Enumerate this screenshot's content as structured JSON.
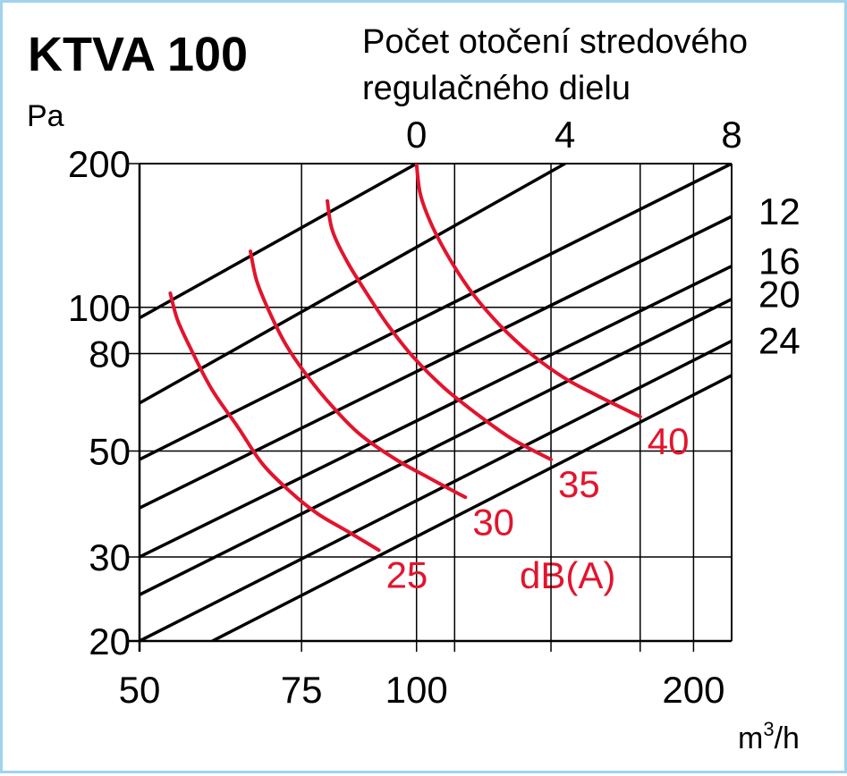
{
  "chart_data": {
    "type": "line",
    "title": "KTVA 100",
    "top_axis_title_line1": "Počet otočení stredového",
    "top_axis_title_line2": "regulačného dielu",
    "ylabel": "Pa",
    "xlabel": "m3/h",
    "xlabel_base": "m",
    "xlabel_sup": "3",
    "xlabel_rest": "/h",
    "x_scale": "log",
    "y_scale": "log",
    "xlim": [
      50,
      220
    ],
    "ylim": [
      20,
      200
    ],
    "x_ticks": [
      50,
      75,
      100,
      200
    ],
    "x_tick_labels": [
      "50",
      "75",
      "100",
      "200"
    ],
    "y_ticks": [
      20,
      30,
      50,
      80,
      100,
      200
    ],
    "y_tick_labels": [
      "20",
      "30",
      "50",
      "80",
      "100",
      "200"
    ],
    "grid_x": [
      50,
      75,
      100,
      110,
      140,
      175,
      200
    ],
    "grid_y": [
      20,
      30,
      50,
      80,
      100,
      200
    ],
    "grid": true,
    "series": [
      {
        "name": "0",
        "x": [
          50,
          100
        ],
        "y": [
          95,
          200
        ]
      },
      {
        "name": "4",
        "x": [
          50,
          145
        ],
        "y": [
          63,
          200
        ]
      },
      {
        "name": "8",
        "x": [
          50,
          220
        ],
        "y": [
          48,
          200
        ]
      },
      {
        "name": "12",
        "x": [
          50,
          220
        ],
        "y": [
          38,
          155
        ]
      },
      {
        "name": "16",
        "x": [
          50,
          220
        ],
        "y": [
          30,
          122
        ]
      },
      {
        "name": "20",
        "x": [
          50,
          220
        ],
        "y": [
          25,
          104
        ]
      },
      {
        "name": "24",
        "x": [
          50,
          220
        ],
        "y": [
          20,
          85
        ]
      },
      {
        "name": "",
        "x": [
          60,
          220
        ],
        "y": [
          20,
          72
        ]
      }
    ],
    "turn_labels": [
      {
        "text": "0",
        "pos": "top"
      },
      {
        "text": "4",
        "pos": "top"
      },
      {
        "text": "8",
        "pos": "top"
      },
      {
        "text": "12",
        "pos": "right"
      },
      {
        "text": "16",
        "pos": "right"
      },
      {
        "text": "20",
        "pos": "right"
      },
      {
        "text": "24",
        "pos": "right"
      }
    ],
    "noise_unit": "dB(A)",
    "noise_curves": [
      {
        "name": "25",
        "x": [
          54,
          55,
          57,
          60,
          64,
          68,
          73,
          78,
          84,
          91
        ],
        "y": [
          107,
          94,
          81,
          67,
          56,
          47,
          41,
          37,
          34,
          31
        ]
      },
      {
        "name": "30",
        "x": [
          66,
          67,
          69,
          72,
          76,
          81,
          87,
          95,
          103,
          113
        ],
        "y": [
          131,
          114,
          99,
          84,
          72,
          62,
          54,
          48,
          44,
          40
        ]
      },
      {
        "name": "35",
        "x": [
          80,
          81,
          84,
          88,
          93,
          99,
          107,
          116,
          127,
          140
        ],
        "y": [
          167,
          145,
          125,
          108,
          92,
          79,
          68,
          60,
          53,
          48
        ]
      },
      {
        "name": "40",
        "x": [
          100,
          101,
          104,
          109,
          115,
          123,
          133,
          145,
          158,
          175
        ],
        "y": [
          200,
          172,
          148,
          125,
          107,
          92,
          80,
          71,
          65,
          59
        ]
      }
    ],
    "colors": {
      "lines": "#000000",
      "noise": "#e2142d",
      "border": "#9fd3ee",
      "background": "#ffffff"
    }
  }
}
